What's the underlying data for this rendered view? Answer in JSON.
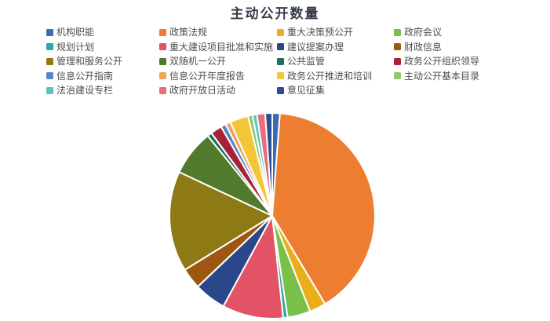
{
  "page": {
    "background": "#ffffff"
  },
  "chart_data": {
    "type": "pie",
    "title": "主动公开数量",
    "title_color": "#363D4A",
    "legend_position": "top",
    "legend_columns": 4,
    "legend_order": "row-major, same as series order",
    "start_angle_deg": -90,
    "direction": "clockwise",
    "slice_border_color": "#ffffff",
    "values_note": "percent of circle estimated from arc angles; no numeric data labels are rendered in the image",
    "items": [
      {
        "label": "机构职能",
        "value": 1.2,
        "color": "#3C6BB3"
      },
      {
        "label": "政策法规",
        "value": 40.2,
        "color": "#EC7D31"
      },
      {
        "label": "重大决策预公开",
        "value": 2.6,
        "color": "#E9AF1B"
      },
      {
        "label": "政府会议",
        "value": 3.6,
        "color": "#79BF4A"
      },
      {
        "label": "规划计划",
        "value": 0.7,
        "color": "#2BABA3"
      },
      {
        "label": "重大建设项目批准和实施",
        "value": 9.6,
        "color": "#E25365"
      },
      {
        "label": "建议提案办理",
        "value": 5.0,
        "color": "#2A4889"
      },
      {
        "label": "财政信息",
        "value": 3.3,
        "color": "#9E5710"
      },
      {
        "label": "管理和服务公开",
        "value": 15.8,
        "color": "#8E7A15"
      },
      {
        "label": "双随机一公开",
        "value": 7.2,
        "color": "#527A2D"
      },
      {
        "label": "公共监管",
        "value": 0.7,
        "color": "#1C6F62"
      },
      {
        "label": "政务公开组织领导",
        "value": 1.8,
        "color": "#A62237"
      },
      {
        "label": "信息公开指南",
        "value": 0.8,
        "color": "#5B84C4"
      },
      {
        "label": "信息公开年度报告",
        "value": 0.8,
        "color": "#EFA35C"
      },
      {
        "label": "政务公开推进和培训",
        "value": 2.9,
        "color": "#F4C637"
      },
      {
        "label": "主动公开基本目录",
        "value": 0.7,
        "color": "#8FC96E"
      },
      {
        "label": "法治建设专栏",
        "value": 0.7,
        "color": "#59C7BB"
      },
      {
        "label": "政府开放日活动",
        "value": 1.3,
        "color": "#EB6C7B"
      },
      {
        "label": "意见征集",
        "value": 1.1,
        "color": "#2C4E95"
      }
    ]
  }
}
